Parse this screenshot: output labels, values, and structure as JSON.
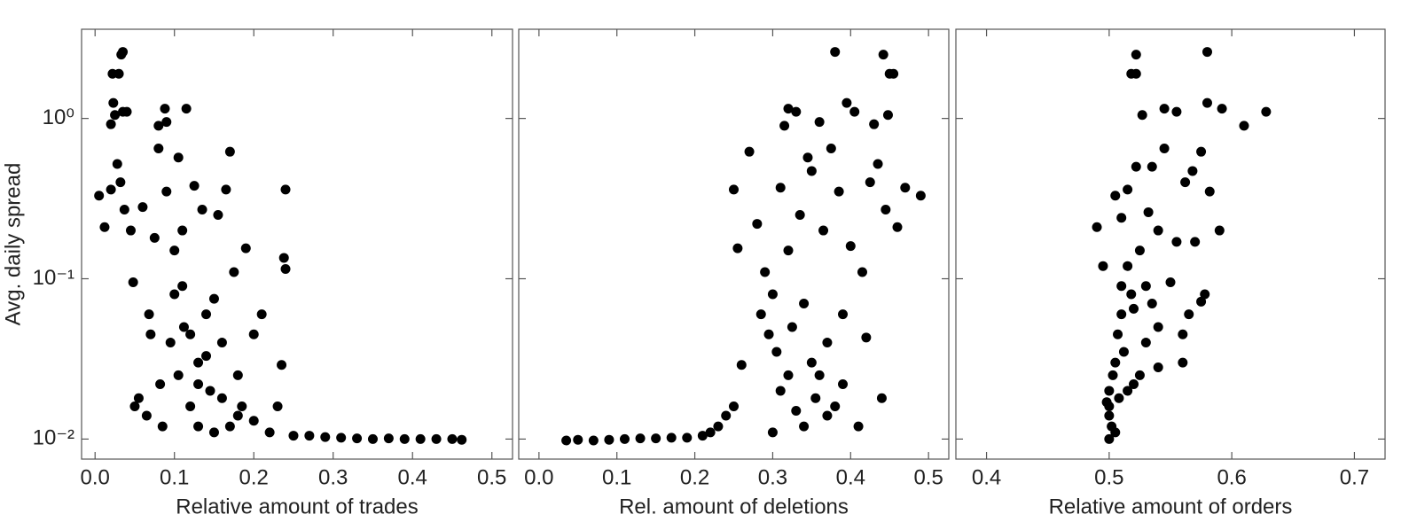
{
  "chart_data": [
    {
      "type": "scatter",
      "xlabel": "Relative amount of trades",
      "ylabel": "Avg. daily spread",
      "color": "#000000",
      "log_y": true,
      "xlim": [
        -0.017,
        0.526
      ],
      "xticks": [
        {
          "value": 0,
          "label": "0.0"
        },
        0.1,
        0.2,
        0.3,
        0.4,
        0.5
      ],
      "ylim": [
        0.0075,
        3.6
      ],
      "yticks": [
        {
          "value": 0.01,
          "label": "10⁻²"
        },
        {
          "value": 0.1,
          "label": "10⁻¹"
        },
        {
          "value": 1,
          "label": "10⁰"
        }
      ],
      "x": [
        0.005,
        0.012,
        0.02,
        0.02,
        0.022,
        0.023,
        0.025,
        0.028,
        0.03,
        0.032,
        0.033,
        0.035,
        0.035,
        0.037,
        0.04,
        0.045,
        0.048,
        0.05,
        0.055,
        0.06,
        0.065,
        0.068,
        0.07,
        0.075,
        0.08,
        0.08,
        0.082,
        0.085,
        0.088,
        0.09,
        0.09,
        0.095,
        0.1,
        0.1,
        0.105,
        0.105,
        0.11,
        0.112,
        0.115,
        0.12,
        0.125,
        0.13,
        0.13,
        0.135,
        0.14,
        0.145,
        0.15,
        0.155,
        0.16,
        0.165,
        0.17,
        0.17,
        0.175,
        0.18,
        0.185,
        0.19,
        0.2,
        0.21,
        0.22,
        0.23,
        0.235,
        0.238,
        0.24,
        0.24,
        0.25,
        0.27,
        0.29,
        0.31,
        0.33,
        0.35,
        0.37,
        0.39,
        0.41,
        0.43,
        0.45,
        0.462,
        0.14,
        0.12,
        0.16,
        0.2,
        0.18,
        0.11,
        0.15,
        0.13
      ],
      "values": [
        0.33,
        0.21,
        0.36,
        0.92,
        1.9,
        1.25,
        1.05,
        0.52,
        1.9,
        0.4,
        2.5,
        2.6,
        1.1,
        0.27,
        1.1,
        0.2,
        0.095,
        0.016,
        0.018,
        0.28,
        0.014,
        0.06,
        0.045,
        0.18,
        0.9,
        0.65,
        0.022,
        0.012,
        1.15,
        0.95,
        0.35,
        0.04,
        0.15,
        0.08,
        0.57,
        0.025,
        0.2,
        0.05,
        1.15,
        0.016,
        0.38,
        0.03,
        0.012,
        0.27,
        0.06,
        0.02,
        0.011,
        0.25,
        0.04,
        0.36,
        0.62,
        0.012,
        0.11,
        0.025,
        0.016,
        0.155,
        0.045,
        0.06,
        0.011,
        0.016,
        0.029,
        0.135,
        0.36,
        0.115,
        0.0105,
        0.0105,
        0.0103,
        0.0102,
        0.0101,
        0.01,
        0.0101,
        0.01,
        0.01,
        0.01,
        0.01,
        0.0099,
        0.033,
        0.045,
        0.018,
        0.013,
        0.014,
        0.09,
        0.075,
        0.022
      ]
    },
    {
      "type": "scatter",
      "xlabel": "Rel. amount of deletions",
      "color": "#000000",
      "xlim": [
        -0.026,
        0.526
      ],
      "xticks": [
        {
          "value": 0,
          "label": "0.0"
        },
        0.1,
        0.2,
        0.3,
        0.4,
        0.5
      ],
      "x": [
        0.035,
        0.05,
        0.07,
        0.09,
        0.11,
        0.13,
        0.15,
        0.17,
        0.19,
        0.21,
        0.22,
        0.23,
        0.24,
        0.25,
        0.25,
        0.255,
        0.26,
        0.27,
        0.28,
        0.285,
        0.29,
        0.295,
        0.3,
        0.305,
        0.31,
        0.31,
        0.315,
        0.32,
        0.32,
        0.325,
        0.33,
        0.335,
        0.34,
        0.345,
        0.35,
        0.35,
        0.355,
        0.36,
        0.365,
        0.37,
        0.375,
        0.38,
        0.385,
        0.39,
        0.395,
        0.4,
        0.405,
        0.41,
        0.415,
        0.42,
        0.425,
        0.43,
        0.435,
        0.44,
        0.442,
        0.445,
        0.448,
        0.45,
        0.455,
        0.46,
        0.47,
        0.49,
        0.33,
        0.36,
        0.38,
        0.34,
        0.3,
        0.32,
        0.37,
        0.39
      ],
      "values": [
        0.0098,
        0.0099,
        0.0098,
        0.0099,
        0.01,
        0.0101,
        0.0101,
        0.0102,
        0.0102,
        0.0105,
        0.011,
        0.012,
        0.014,
        0.016,
        0.36,
        0.155,
        0.029,
        0.62,
        0.22,
        0.06,
        0.11,
        0.045,
        0.08,
        0.035,
        0.37,
        0.02,
        0.9,
        1.15,
        0.15,
        0.05,
        1.1,
        0.25,
        0.07,
        0.57,
        0.03,
        0.47,
        0.018,
        0.95,
        0.2,
        0.04,
        0.65,
        2.6,
        0.35,
        0.06,
        1.25,
        0.16,
        1.1,
        0.012,
        0.11,
        0.043,
        0.4,
        0.92,
        0.52,
        0.018,
        2.5,
        0.27,
        1.05,
        1.9,
        1.9,
        0.21,
        0.37,
        0.33,
        0.015,
        0.025,
        0.016,
        0.012,
        0.011,
        0.025,
        0.014,
        0.022
      ]
    },
    {
      "type": "scatter",
      "xlabel": "Relative amount of orders",
      "color": "#000000",
      "xlim": [
        0.375,
        0.725
      ],
      "xticks": [
        0.4,
        0.5,
        0.6,
        0.7
      ],
      "x": [
        0.49,
        0.495,
        0.498,
        0.5,
        0.5,
        0.5,
        0.502,
        0.503,
        0.505,
        0.505,
        0.507,
        0.508,
        0.51,
        0.51,
        0.512,
        0.515,
        0.515,
        0.518,
        0.518,
        0.52,
        0.522,
        0.522,
        0.522,
        0.525,
        0.527,
        0.53,
        0.532,
        0.535,
        0.535,
        0.54,
        0.54,
        0.545,
        0.545,
        0.55,
        0.555,
        0.555,
        0.56,
        0.562,
        0.565,
        0.568,
        0.57,
        0.575,
        0.578,
        0.58,
        0.58,
        0.582,
        0.59,
        0.592,
        0.61,
        0.628,
        0.575,
        0.56,
        0.54,
        0.53,
        0.52,
        0.51,
        0.5,
        0.505,
        0.515,
        0.525
      ],
      "values": [
        0.21,
        0.12,
        0.017,
        0.01,
        0.014,
        0.02,
        0.012,
        0.025,
        0.33,
        0.03,
        0.045,
        0.018,
        0.24,
        0.06,
        0.035,
        0.36,
        0.12,
        1.9,
        0.08,
        0.022,
        1.9,
        2.5,
        0.5,
        0.15,
        1.05,
        0.04,
        0.26,
        0.5,
        0.07,
        0.2,
        0.028,
        0.65,
        1.15,
        0.095,
        0.17,
        1.1,
        0.03,
        0.4,
        0.06,
        0.47,
        0.17,
        0.62,
        0.08,
        2.6,
        1.25,
        0.35,
        0.2,
        1.15,
        0.9,
        1.1,
        0.072,
        0.045,
        0.05,
        0.09,
        0.065,
        0.09,
        0.016,
        0.011,
        0.02,
        0.025
      ]
    }
  ]
}
